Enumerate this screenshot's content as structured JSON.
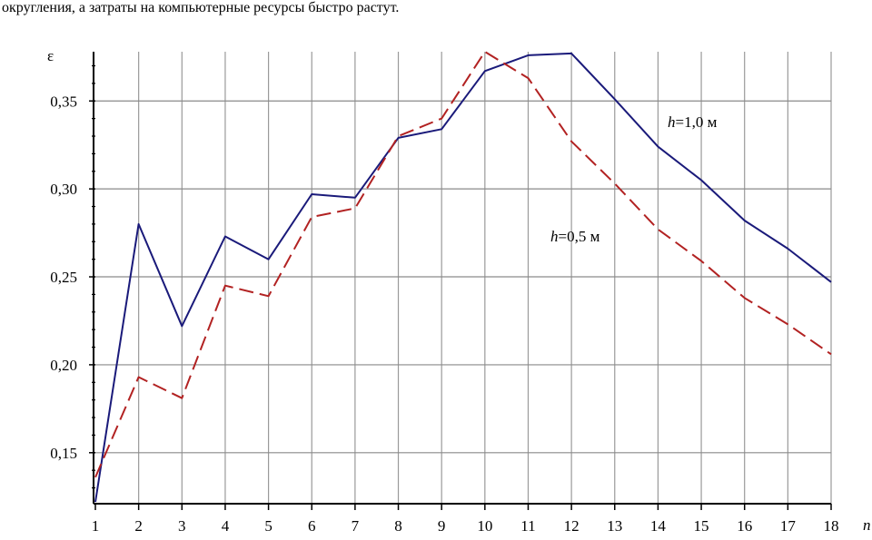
{
  "text_above": "округления, а затраты на компьютерные ресурсы быстро растут.",
  "chart_data": {
    "type": "line",
    "title": "",
    "xlabel": "n",
    "ylabel": "ε",
    "x": [
      1,
      2,
      3,
      4,
      5,
      6,
      7,
      8,
      9,
      10,
      11,
      12,
      13,
      14,
      15,
      16,
      17,
      18
    ],
    "xlim": [
      1,
      18
    ],
    "ylim": [
      0.121,
      0.378
    ],
    "xticks": [
      "1",
      "2",
      "3",
      "4",
      "5",
      "6",
      "7",
      "8",
      "9",
      "10",
      "11",
      "12",
      "13",
      "14",
      "15",
      "16",
      "17",
      "18"
    ],
    "yticks": [
      0.15,
      0.2,
      0.25,
      0.3,
      0.35
    ],
    "ytick_labels": [
      "0,15",
      "0,20",
      "0,25",
      "0,30",
      "0,35"
    ],
    "grid": true,
    "series": [
      {
        "name": "h=1,0 м",
        "label_italic": "h",
        "label_rest": "=1,0 м",
        "color": "#1a1a7a",
        "style": "solid",
        "values": [
          0.122,
          0.28,
          0.222,
          0.273,
          0.26,
          0.297,
          0.295,
          0.329,
          0.334,
          0.367,
          0.376,
          0.377,
          0.351,
          0.324,
          0.305,
          0.282,
          0.266,
          0.247
        ]
      },
      {
        "name": "h=0,5 м",
        "label_italic": "h",
        "label_rest": "=0,5 м",
        "color": "#b22222",
        "style": "dashed",
        "values": [
          0.136,
          0.193,
          0.181,
          0.245,
          0.239,
          0.284,
          0.289,
          0.33,
          0.34,
          0.378,
          0.363,
          0.327,
          0.303,
          0.277,
          0.259,
          0.238,
          0.223,
          0.206
        ]
      }
    ]
  }
}
